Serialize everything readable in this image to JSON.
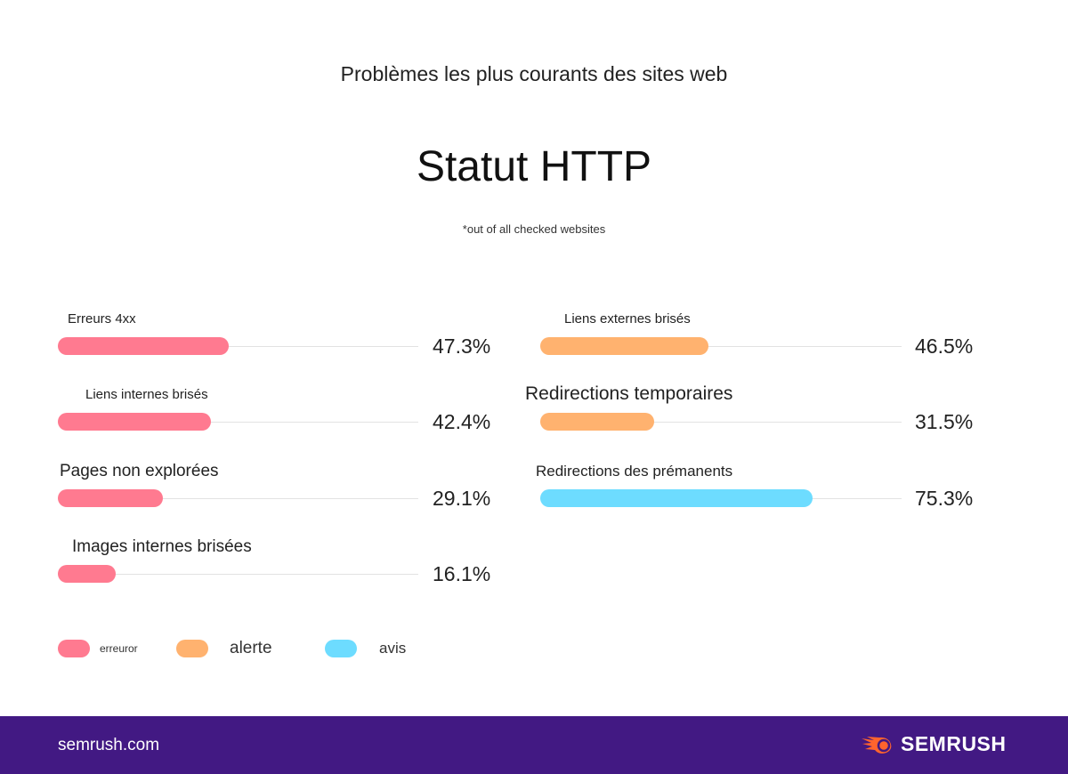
{
  "header": {
    "subtitle": "Problèmes les plus courants des sites web",
    "title": "Statut HTTP",
    "note": "*out of all checked websites"
  },
  "colors": {
    "erreur": "#ff7a90",
    "alerte": "#ffb26f",
    "avis": "#6ddcff",
    "footer": "#421983",
    "logo": "#ff642d"
  },
  "chart_data": {
    "type": "bar",
    "orientation": "horizontal",
    "title": "Statut HTTP",
    "xlim": [
      0,
      100
    ],
    "grid": false,
    "legend_placement": "bottom-left",
    "legend": [
      {
        "name": "erreuror",
        "color": "#ff7a90"
      },
      {
        "name": "alerte",
        "color": "#ffb26f"
      },
      {
        "name": "avis",
        "color": "#6ddcff"
      }
    ],
    "bars": [
      {
        "category": "Erreurs 4xx",
        "value": 47.3,
        "label": "47.3%",
        "type": "erreur",
        "column": "left"
      },
      {
        "category": "Liens internes brisés",
        "value": 42.4,
        "label": "42.4%",
        "type": "erreur",
        "column": "left"
      },
      {
        "category": "Pages non explorées",
        "value": 29.1,
        "label": "29.1%",
        "type": "erreur",
        "column": "left"
      },
      {
        "category": "Images internes brisées",
        "value": 16.1,
        "label": "16.1%",
        "type": "erreur",
        "column": "left"
      },
      {
        "category": "Liens externes brisés",
        "value": 46.5,
        "label": "46.5%",
        "type": "alerte",
        "column": "right"
      },
      {
        "category": "Redirections temporaires",
        "value": 31.5,
        "label": "31.5%",
        "type": "alerte",
        "column": "right"
      },
      {
        "category": "Redirections des prémanents",
        "value": 75.3,
        "label": "75.3%",
        "type": "avis",
        "column": "right"
      }
    ]
  },
  "footer": {
    "site": "semrush.com",
    "logo_text": "SEMRUSH"
  }
}
